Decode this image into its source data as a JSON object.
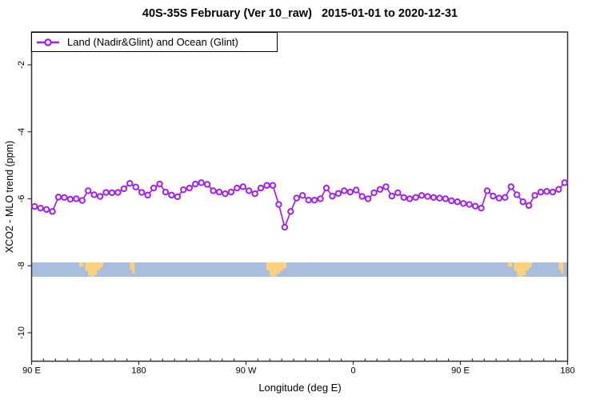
{
  "chart_data": {
    "type": "line",
    "title": "40S-35S February (Ver 10_raw)   2015-01-01 to 2020-12-31",
    "xlabel": "Longitude (deg E)",
    "ylabel": "XCO2 - MLO trend (ppm)",
    "grid": false,
    "legend_position": "top-left",
    "x_range": [
      90,
      540
    ],
    "y_range": [
      -10.85,
      -1.02
    ],
    "x_ticks": [
      {
        "value": 90,
        "label": "90 E"
      },
      {
        "value": 180,
        "label": "180"
      },
      {
        "value": 270,
        "label": "90 W"
      },
      {
        "value": 360,
        "label": "0"
      },
      {
        "value": 450,
        "label": "90 E"
      },
      {
        "value": 540,
        "label": "180"
      }
    ],
    "x_minor_step": 10,
    "y_ticks": [
      -2,
      -4,
      -6,
      -8,
      -10
    ],
    "series": [
      {
        "name": "Land (Nadir&Glint) and Ocean (Glint)",
        "color": "#A020F0",
        "marker": "open-circle",
        "x": [
          92.5,
          97.5,
          102.5,
          107.5,
          112.5,
          117.5,
          122.5,
          127.5,
          132.5,
          137.5,
          142.5,
          147.5,
          152.5,
          157.5,
          162.5,
          167.5,
          172.5,
          177.5,
          182.5,
          187.5,
          192.5,
          197.5,
          202.5,
          207.5,
          212.5,
          217.5,
          222.5,
          227.5,
          232.5,
          237.5,
          242.5,
          247.5,
          252.5,
          257.5,
          262.5,
          267.5,
          272.5,
          277.5,
          282.5,
          287.5,
          292.5,
          297.5,
          302.5,
          307.5,
          312.5,
          317.5,
          322.5,
          327.5,
          332.5,
          337.5,
          342.5,
          347.5,
          352.5,
          357.5,
          362.5,
          367.5,
          372.5,
          377.5,
          382.5,
          387.5,
          392.5,
          397.5,
          402.5,
          407.5,
          412.5,
          417.5,
          422.5,
          427.5,
          432.5,
          437.5,
          442.5,
          447.5,
          452.5,
          457.5,
          462.5,
          467.5,
          472.5,
          477.5,
          482.5,
          487.5,
          492.5,
          497.5,
          502.5,
          507.5,
          512.5,
          517.5,
          522.5,
          527.5,
          532.5,
          537.5
        ],
        "y": [
          -6.23,
          -6.28,
          -6.32,
          -6.38,
          -5.95,
          -5.96,
          -6.01,
          -6.0,
          -6.05,
          -5.76,
          -5.88,
          -5.93,
          -5.81,
          -5.82,
          -5.81,
          -5.7,
          -5.54,
          -5.65,
          -5.81,
          -5.89,
          -5.68,
          -5.56,
          -5.8,
          -5.89,
          -5.94,
          -5.73,
          -5.68,
          -5.56,
          -5.52,
          -5.57,
          -5.76,
          -5.8,
          -5.85,
          -5.8,
          -5.68,
          -5.64,
          -5.76,
          -5.85,
          -5.68,
          -5.6,
          -5.6,
          -6.17,
          -6.85,
          -6.38,
          -5.98,
          -5.9,
          -6.04,
          -6.04,
          -6.0,
          -5.68,
          -5.92,
          -5.84,
          -5.76,
          -5.8,
          -5.74,
          -5.93,
          -6.0,
          -5.82,
          -5.72,
          -5.64,
          -5.92,
          -5.82,
          -5.96,
          -6.0,
          -5.96,
          -5.9,
          -5.93,
          -5.96,
          -5.98,
          -6.0,
          -6.06,
          -6.09,
          -6.14,
          -6.17,
          -6.22,
          -6.28,
          -5.76,
          -5.92,
          -5.98,
          -5.96,
          -5.64,
          -5.88,
          -6.09,
          -6.2,
          -5.9,
          -5.8,
          -5.78,
          -5.8,
          -5.72,
          -5.52
        ]
      }
    ],
    "map_band": {
      "description": "coastline strip for latitude band 40S-35S",
      "y_top": -7.9,
      "y_bottom": -8.33,
      "ocean_color": "#A9BEDC",
      "land_color": "#FBD17E",
      "land_patches": [
        {
          "name": "australia-west",
          "from": 130,
          "to": 133.5,
          "profile": [
            0.3
          ]
        },
        {
          "name": "australia",
          "from": 135,
          "to": 150,
          "profile": [
            0.6,
            0.95,
            1,
            0.9,
            0.55,
            0.35
          ]
        },
        {
          "name": "new-zealand",
          "from": 172.5,
          "to": 176.5,
          "profile": [
            0.5,
            0.8
          ]
        },
        {
          "name": "south-america",
          "from": 287,
          "to": 304,
          "profile": [
            0.55,
            0.95,
            1,
            0.8,
            0.6,
            0.4
          ]
        },
        {
          "name": "australia-west-repeat",
          "from": 490,
          "to": 493.5,
          "profile": [
            0.3
          ]
        },
        {
          "name": "australia-repeat",
          "from": 495,
          "to": 510,
          "profile": [
            0.6,
            0.95,
            1,
            0.9,
            0.55,
            0.35
          ]
        },
        {
          "name": "new-zealand-repeat",
          "from": 532.5,
          "to": 536.5,
          "profile": [
            0.5,
            0.8
          ]
        }
      ]
    }
  }
}
